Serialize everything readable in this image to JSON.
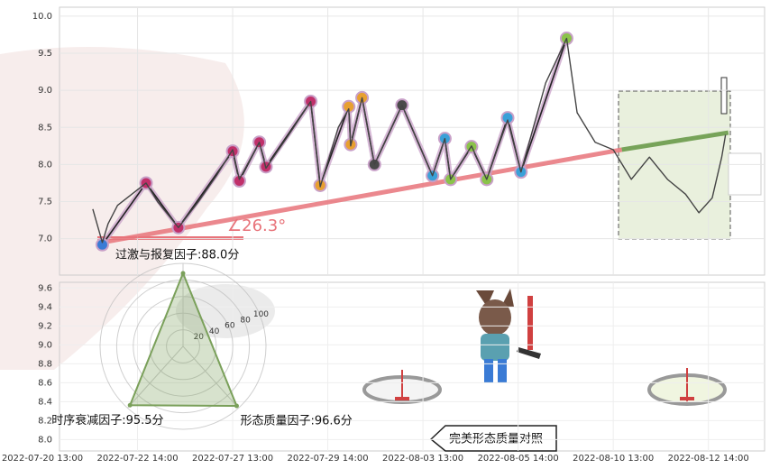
{
  "chart_data": [
    {
      "type": "line",
      "xlim": [
        0,
        7.6
      ],
      "ylim": [
        6.51,
        10.12
      ],
      "xticks": [
        {
          "value": 0,
          "label": "2022-07-20 13:00"
        },
        {
          "value": 1,
          "label": "2022-07-22 14:00"
        },
        {
          "value": 2,
          "label": "2022-07-27 13:00"
        },
        {
          "value": 3,
          "label": "2022-07-29 14:00"
        },
        {
          "value": 4,
          "label": "2022-08-03 13:00"
        },
        {
          "value": 5,
          "label": "2022-08-05 14:00"
        },
        {
          "value": 6,
          "label": "2022-08-10 13:00"
        },
        {
          "value": 7,
          "label": "2022-08-12 14:00"
        }
      ],
      "yticks": [
        {
          "value": 7,
          "label": "7.0"
        },
        7.5,
        {
          "value": 8,
          "label": "8.0"
        },
        8.5,
        {
          "value": 9,
          "label": "9.0"
        },
        9.5,
        {
          "value": 10,
          "label": "10.0"
        }
      ],
      "grid": true,
      "series": [
        {
          "color": "#e8737a",
          "x": [
            0.63,
            6.09
          ],
          "values": [
            6.95,
            8.2
          ]
        },
        {
          "color": "#6a9a4a",
          "x": [
            6.09,
            7.21
          ],
          "values": [
            8.2,
            8.43
          ]
        },
        {
          "color": "#c8a0c8",
          "markers": true,
          "x": [
            0.63,
            1.09,
            1.43,
            2.0,
            2.07,
            2.28,
            2.35,
            2.82,
            2.92,
            3.22,
            3.24,
            3.36,
            3.49,
            3.78,
            4.1,
            4.23,
            4.29,
            4.51,
            4.67,
            4.89,
            5.03,
            5.51
          ],
          "values": [
            6.92,
            7.75,
            7.15,
            8.18,
            7.78,
            8.3,
            7.97,
            8.85,
            7.72,
            8.78,
            8.27,
            8.9,
            8.0,
            8.8,
            7.85,
            8.35,
            7.8,
            8.24,
            7.8,
            8.63,
            7.9,
            9.7
          ],
          "marker_colors": [
            "#3a7bd5",
            "#c0306a",
            "#c0306a",
            "#c0306a",
            "#c0306a",
            "#c0306a",
            "#c0306a",
            "#c0306a",
            "#e8a030",
            "#e8a030",
            "#e8a030",
            "#e8a030",
            "#4a4a4a",
            "#4a4a4a",
            "#3aa0d8",
            "#3aa0d8",
            "#8bc34a",
            "#8bc34a",
            "#8bc34a",
            "#3aa0d8",
            "#3aa0d8",
            "#8bc34a"
          ]
        },
        {
          "color": "#444444",
          "x": [
            0.53,
            0.63,
            0.69,
            0.79,
            1.09,
            1.21,
            1.43,
            1.64,
            1.83,
            2.0,
            2.07,
            2.28,
            2.35,
            2.59,
            2.82,
            2.92,
            3.11,
            3.22,
            3.24,
            3.36,
            3.49,
            3.78,
            4.1,
            4.23,
            4.29,
            4.51,
            4.67,
            4.89,
            5.03,
            5.29,
            5.51,
            5.62,
            5.81,
            6.0,
            6.19,
            6.38,
            6.57,
            6.76,
            6.9,
            7.04,
            7.14,
            7.18
          ],
          "values": [
            7.4,
            6.95,
            7.2,
            7.45,
            7.75,
            7.5,
            7.15,
            7.5,
            7.85,
            8.2,
            7.8,
            8.3,
            7.95,
            8.4,
            8.85,
            7.7,
            8.5,
            8.75,
            8.25,
            8.9,
            8.0,
            8.8,
            7.85,
            8.35,
            7.8,
            8.25,
            7.8,
            8.6,
            7.9,
            9.1,
            9.7,
            8.7,
            8.3,
            8.2,
            7.8,
            8.1,
            7.8,
            7.6,
            7.35,
            7.55,
            8.1,
            8.4
          ]
        }
      ],
      "annotations": [
        "∠26.3°",
        "完美形态质量对照"
      ]
    },
    {
      "type": "line",
      "ylim": [
        7.88,
        9.66
      ],
      "yticks": [
        {
          "value": 8,
          "label": "8.0"
        },
        8.2,
        8.4,
        8.6,
        8.8,
        {
          "value": 9,
          "label": "9.0"
        },
        9.2,
        9.4,
        9.6
      ]
    },
    {
      "type": "radar",
      "rlim": [
        0,
        100
      ],
      "rticks": [
        20,
        40,
        60,
        80,
        100
      ],
      "color": "#7aa05a",
      "values": [
        88.0,
        95.5,
        96.6
      ],
      "value_labels": [
        "过激与报复因子:88.0分",
        "时序衰减因子:95.5分",
        "形态质量因子:96.6分"
      ]
    }
  ]
}
